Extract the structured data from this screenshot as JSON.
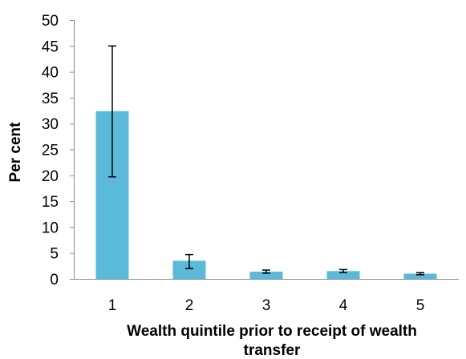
{
  "chart_data": {
    "type": "bar",
    "categories": [
      "1",
      "2",
      "3",
      "4",
      "5"
    ],
    "values": [
      32.4,
      3.5,
      1.4,
      1.5,
      1.0
    ],
    "error_low": [
      19.7,
      2.0,
      1.1,
      1.2,
      0.8
    ],
    "error_high": [
      45.0,
      4.7,
      1.7,
      1.8,
      1.2
    ],
    "xlabel_line1": "Wealth quintile prior to receipt of wealth",
    "xlabel_line2": "transfer",
    "ylabel": "Per cent",
    "ylim": [
      0,
      50
    ],
    "yticks": [
      "0",
      "5",
      "10",
      "15",
      "20",
      "25",
      "30",
      "35",
      "40",
      "45",
      "50"
    ],
    "bar_color": "#5BBAD9",
    "grid": false,
    "legend": "none"
  }
}
